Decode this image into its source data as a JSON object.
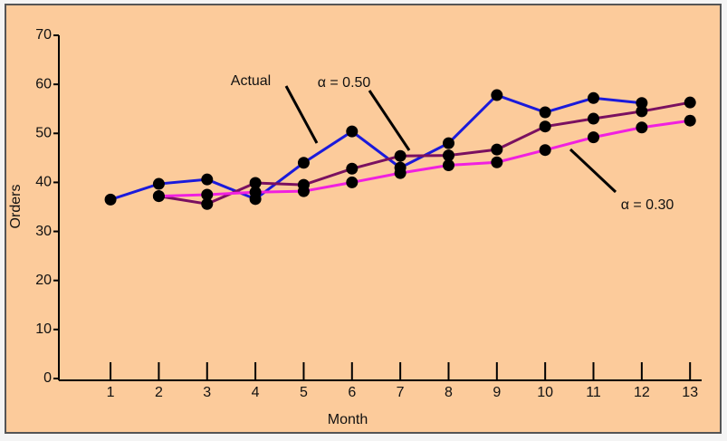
{
  "chart_data": {
    "type": "line",
    "xlabel": "Month",
    "ylabel": "Orders",
    "x": [
      1,
      2,
      3,
      4,
      5,
      6,
      7,
      8,
      9,
      10,
      11,
      12,
      13
    ],
    "series": [
      {
        "name": "Actual",
        "color": "#1a1adb",
        "values": [
          36.5,
          39.7,
          40.6,
          36.6,
          44,
          50.4,
          43,
          48,
          57.8,
          54.3,
          57.2,
          56.2,
          null
        ]
      },
      {
        "name": "α = 0.50",
        "color": "#7a1060",
        "values": [
          null,
          37.2,
          35.6,
          39.9,
          39.5,
          42.8,
          45.4,
          45.5,
          46.7,
          51.4,
          53,
          54.5,
          56.3
        ]
      },
      {
        "name": "α = 0.30",
        "color": "#f020e0",
        "values": [
          null,
          37.2,
          37.5,
          38,
          38.2,
          40,
          41.9,
          43.5,
          44.1,
          46.6,
          49.2,
          51.2,
          52.6
        ]
      }
    ],
    "xlim": [
      -0.07,
      13.24
    ],
    "xticks": [
      1,
      2,
      3,
      4,
      5,
      6,
      7,
      8,
      9,
      10,
      11,
      12,
      13
    ],
    "ylim": [
      0,
      70
    ],
    "yticks": [
      0,
      10,
      20,
      30,
      40,
      50,
      60,
      70
    ]
  }
}
